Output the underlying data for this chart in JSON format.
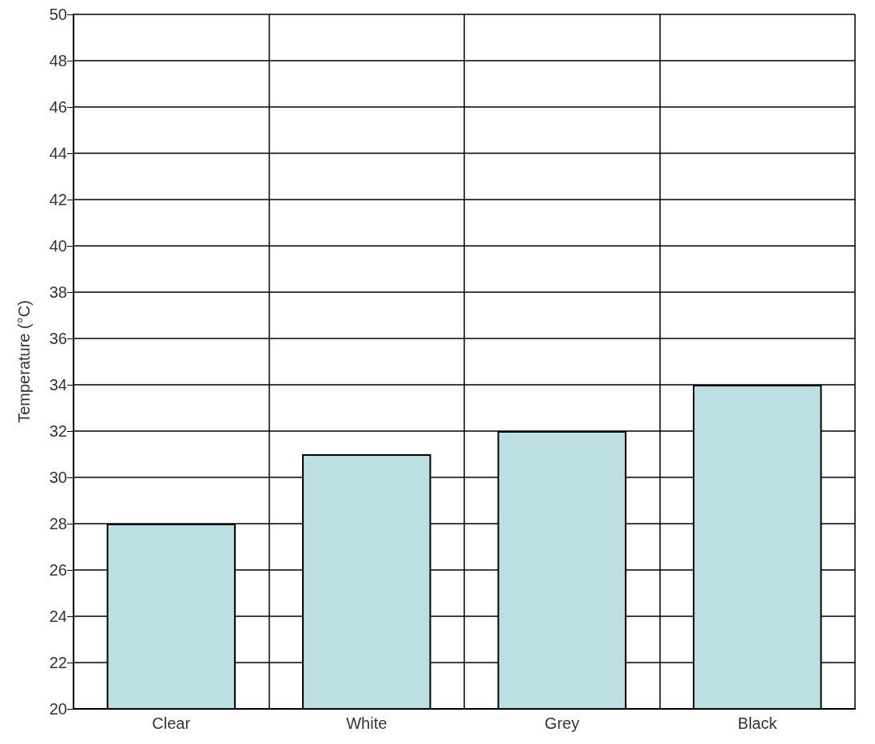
{
  "chart_data": {
    "type": "bar",
    "ylabel": "Temperature (°C)",
    "categories": [
      "Clear",
      "White",
      "Grey",
      "Black"
    ],
    "values": [
      28,
      31,
      32,
      34
    ],
    "color": "#bbdfe2",
    "ylim": [
      20,
      50
    ],
    "yticks": [
      20,
      22,
      24,
      26,
      28,
      30,
      32,
      34,
      36,
      38,
      40,
      42,
      44,
      46,
      48,
      50
    ],
    "grid": true
  }
}
